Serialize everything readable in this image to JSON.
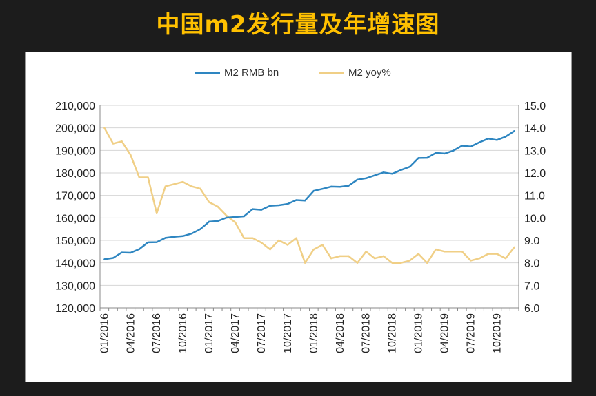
{
  "page": {
    "title": "中国m2发行量及年增速图"
  },
  "legend": {
    "series1": "M2 RMB bn",
    "series2": "M2 yoy%"
  },
  "colors": {
    "series1": "#2e86c1",
    "series2": "#f0cf86",
    "title": "#ffc000",
    "grid": "#d6d6d6"
  },
  "chart_data": {
    "type": "line",
    "title": "中国m2发行量及年增速图",
    "x": [
      "01/2016",
      "02/2016",
      "03/2016",
      "04/2016",
      "05/2016",
      "06/2016",
      "07/2016",
      "08/2016",
      "09/2016",
      "10/2016",
      "11/2016",
      "12/2016",
      "01/2017",
      "02/2017",
      "03/2017",
      "04/2017",
      "05/2017",
      "06/2017",
      "07/2017",
      "08/2017",
      "09/2017",
      "10/2017",
      "11/2017",
      "12/2017",
      "01/2018",
      "02/2018",
      "03/2018",
      "04/2018",
      "05/2018",
      "06/2018",
      "07/2018",
      "08/2018",
      "09/2018",
      "10/2018",
      "11/2018",
      "12/2018",
      "01/2019",
      "02/2019",
      "03/2019",
      "04/2019",
      "05/2019",
      "06/2019",
      "07/2019",
      "08/2019",
      "09/2019",
      "10/2019",
      "11/2019",
      "12/2019"
    ],
    "x_tick_labels": [
      "01/2016",
      "04/2016",
      "07/2016",
      "10/2016",
      "01/2017",
      "04/2017",
      "07/2017",
      "10/2017",
      "01/2018",
      "04/2018",
      "07/2018",
      "10/2018",
      "01/2019",
      "04/2019",
      "07/2019",
      "10/2019"
    ],
    "series": [
      {
        "name": "M2 RMB bn",
        "axis": "left",
        "values": [
          141600,
          142200,
          144600,
          144500,
          146100,
          149100,
          149200,
          151100,
          151600,
          151900,
          153000,
          155000,
          158300,
          158600,
          160100,
          160400,
          160700,
          163900,
          163600,
          165400,
          165600,
          166200,
          167900,
          167700,
          172000,
          172900,
          173900,
          173800,
          174300,
          177000,
          177600,
          178900,
          180200,
          179600,
          181300,
          182700,
          186600,
          186700,
          188900,
          188600,
          189900,
          192100,
          191700,
          193600,
          195200,
          194600,
          196100,
          198600
        ]
      },
      {
        "name": "M2 yoy%",
        "axis": "right",
        "values": [
          14.0,
          13.3,
          13.4,
          12.8,
          11.8,
          11.8,
          10.2,
          11.4,
          11.5,
          11.6,
          11.4,
          11.3,
          10.7,
          10.5,
          10.1,
          9.8,
          9.1,
          9.1,
          8.9,
          8.6,
          9.0,
          8.8,
          9.1,
          8.0,
          8.6,
          8.8,
          8.2,
          8.3,
          8.3,
          8.0,
          8.5,
          8.2,
          8.3,
          8.0,
          8.0,
          8.1,
          8.4,
          8.0,
          8.6,
          8.5,
          8.5,
          8.5,
          8.1,
          8.2,
          8.4,
          8.4,
          8.2,
          8.7
        ]
      }
    ],
    "y_left": {
      "ylim": [
        120000,
        210000
      ],
      "ticks": [
        "120,000",
        "130,000",
        "140,000",
        "150,000",
        "160,000",
        "170,000",
        "180,000",
        "190,000",
        "200,000",
        "210,000"
      ]
    },
    "y_right": {
      "ylim": [
        6.0,
        15.0
      ],
      "ticks": [
        "6.0",
        "7.0",
        "8.0",
        "9.0",
        "10.0",
        "11.0",
        "12.0",
        "13.0",
        "14.0",
        "15.0"
      ]
    },
    "grid": true,
    "legend_position": "top-center"
  }
}
